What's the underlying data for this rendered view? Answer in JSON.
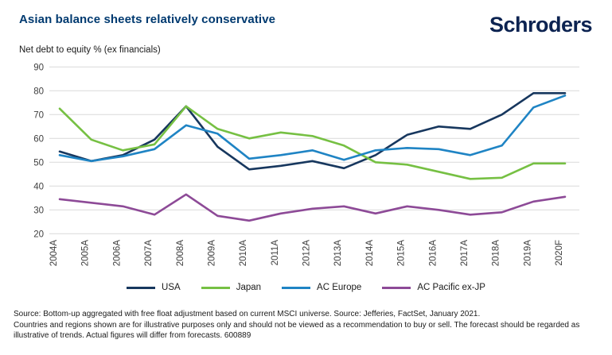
{
  "header": {
    "title": "Asian balance sheets relatively conservative",
    "logo_text": "Schroders",
    "brand_navy": "#0c2351",
    "title_color": "#003a70"
  },
  "chart_data": {
    "type": "line",
    "title": "Asian balance sheets relatively conservative",
    "ylabel": "Net debt to equity % (ex financials)",
    "xlabel": "",
    "ylim": [
      20,
      90
    ],
    "yticks": [
      20,
      30,
      40,
      50,
      60,
      70,
      80,
      90
    ],
    "grid": true,
    "legend_position": "bottom",
    "categories": [
      "2004A",
      "2005A",
      "2006A",
      "2007A",
      "2008A",
      "2009A",
      "2010A",
      "2011A",
      "2012A",
      "2013A",
      "2014A",
      "2015A",
      "2016A",
      "2017A",
      "2018A",
      "2019A",
      "2020F"
    ],
    "series": [
      {
        "name": "USA",
        "color": "#17375e",
        "values": [
          54.5,
          50.5,
          53,
          59.5,
          73.5,
          56.5,
          47,
          48.5,
          50.5,
          47.5,
          53,
          61.5,
          65,
          64,
          70,
          79,
          79
        ]
      },
      {
        "name": "Japan",
        "color": "#76c043",
        "values": [
          72.5,
          59.5,
          55,
          57.5,
          73.5,
          64,
          60,
          62.5,
          61,
          57,
          50,
          49,
          46,
          43,
          43.5,
          49.5,
          49.5
        ]
      },
      {
        "name": "AC Europe",
        "color": "#1f84c4",
        "values": [
          53,
          50.5,
          52.5,
          55.5,
          65.5,
          62,
          51.5,
          53,
          55,
          51,
          55,
          56,
          55.5,
          53,
          57,
          73,
          78
        ]
      },
      {
        "name": "AC Pacific ex-JP",
        "color": "#8d4a97",
        "values": [
          34.5,
          33,
          31.5,
          28,
          36.5,
          27.5,
          25.5,
          28.5,
          30.5,
          31.5,
          28.5,
          31.5,
          30,
          28,
          29,
          33.5,
          35.5
        ]
      }
    ],
    "grid_color": "#d9d9d9",
    "axis_text_color": "#404040"
  },
  "footer": {
    "line1": "Source: Bottom-up aggregated with free float adjustment based on current MSCI universe. Source: Jefferies, FactSet, January 2021.",
    "line2": "Countries and regions shown are for illustrative purposes only and should not be viewed as a recommendation to buy or sell. The forecast should be regarded as illustrative of trends. Actual figures will differ from forecasts. 600889"
  }
}
